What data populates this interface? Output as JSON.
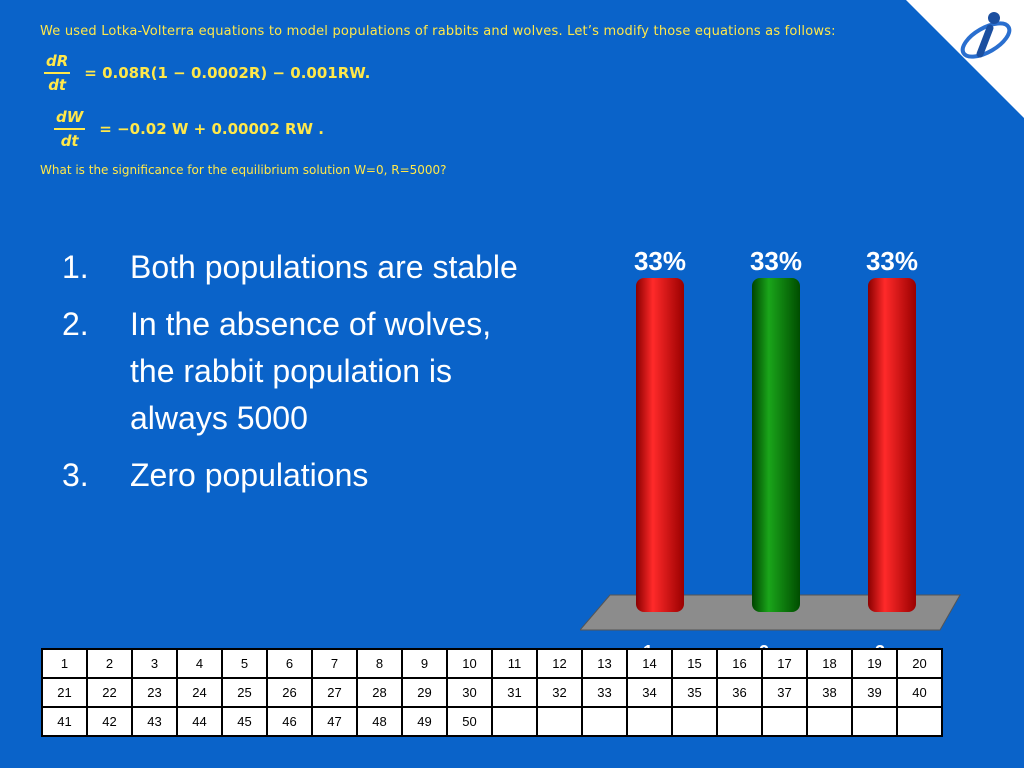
{
  "question": {
    "intro": "We used Lotka-Volterra equations to model populations of rabbits and wolves. Let’s modify those equations as follows:",
    "eq1": {
      "num": "dR",
      "den": "dt",
      "rhs": "=  0.08R(1  − 0.0002R)  − 0.001RW."
    },
    "eq2": {
      "num": "dW",
      "den": "dt",
      "rhs": "=  −0.02  W  +  0.00002  RW  ."
    },
    "prompt": "What is the significance for the equilibrium solution W=0, R=5000?"
  },
  "answers": [
    {
      "num": "1.",
      "text": "Both populations are stable"
    },
    {
      "num": "2.",
      "text": "In the absence of wolves, the rabbit population is always 5000"
    },
    {
      "num": "3.",
      "text": "Zero populations"
    }
  ],
  "chart_data": {
    "type": "bar",
    "categories": [
      "1",
      "2",
      "3"
    ],
    "values": [
      33,
      33,
      33
    ],
    "labels": [
      "33%",
      "33%",
      "33%"
    ],
    "colors": [
      "#ee0000",
      "#007a00",
      "#ee0000"
    ],
    "ylim": [
      0,
      33
    ]
  },
  "grid": {
    "rows": [
      [
        "1",
        "2",
        "3",
        "4",
        "5",
        "6",
        "7",
        "8",
        "9",
        "10",
        "11",
        "12",
        "13",
        "14",
        "15",
        "16",
        "17",
        "18",
        "19",
        "20"
      ],
      [
        "21",
        "22",
        "23",
        "24",
        "25",
        "26",
        "27",
        "28",
        "29",
        "30",
        "31",
        "32",
        "33",
        "34",
        "35",
        "36",
        "37",
        "38",
        "39",
        "40"
      ],
      [
        "41",
        "42",
        "43",
        "44",
        "45",
        "46",
        "47",
        "48",
        "49",
        "50",
        "",
        "",
        "",
        "",
        "",
        "",
        "",
        "",
        "",
        ""
      ]
    ]
  },
  "logo_icon": "turning-point-logo-icon"
}
